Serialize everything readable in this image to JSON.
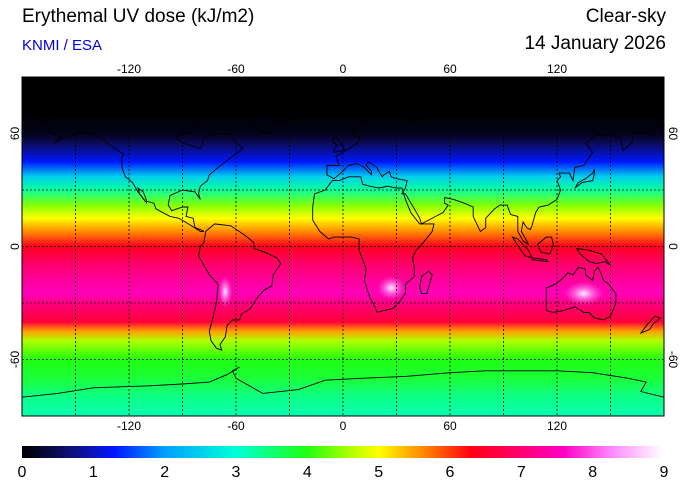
{
  "header": {
    "title": "Erythemal UV dose (kJ/m2)",
    "credit": "KNMI / ESA",
    "condition": "Clear-sky",
    "date": "14 January 2026"
  },
  "map": {
    "projection": "equirectangular",
    "lon_range": [
      -180,
      180
    ],
    "lat_range": [
      -90,
      90
    ],
    "lon_ticks": [
      {
        "value": -120,
        "label": "-120"
      },
      {
        "value": -60,
        "label": "-60"
      },
      {
        "value": 0,
        "label": "0"
      },
      {
        "value": 60,
        "label": "60"
      },
      {
        "value": 120,
        "label": "120"
      }
    ],
    "lat_ticks": [
      {
        "value": 60,
        "label": "60"
      },
      {
        "value": 0,
        "label": "0"
      },
      {
        "value": -60,
        "label": "-60"
      }
    ],
    "gridlines": "dotted",
    "coastlines": "black",
    "field_profile": [
      {
        "lat": 90,
        "dose": 0
      },
      {
        "lat": 72,
        "dose": 0
      },
      {
        "lat": 60,
        "dose": 0.15
      },
      {
        "lat": 55,
        "dose": 0.5
      },
      {
        "lat": 45,
        "dose": 1.3
      },
      {
        "lat": 37,
        "dose": 2.5
      },
      {
        "lat": 30,
        "dose": 3.3
      },
      {
        "lat": 22,
        "dose": 4.4
      },
      {
        "lat": 15,
        "dose": 5.0
      },
      {
        "lat": 8,
        "dose": 5.6
      },
      {
        "lat": 0,
        "dose": 6.4
      },
      {
        "lat": -10,
        "dose": 7.0
      },
      {
        "lat": -18,
        "dose": 7.3
      },
      {
        "lat": -25,
        "dose": 7.5
      },
      {
        "lat": -32,
        "dose": 7.0
      },
      {
        "lat": -40,
        "dose": 6.6
      },
      {
        "lat": -45,
        "dose": 5.5
      },
      {
        "lat": -50,
        "dose": 4.6
      },
      {
        "lat": -60,
        "dose": 4.0
      },
      {
        "lat": -70,
        "dose": 3.8
      },
      {
        "lat": -80,
        "dose": 3.4
      },
      {
        "lat": -90,
        "dose": 3.2
      }
    ]
  },
  "colorbar": {
    "min": 0,
    "max": 9,
    "tick_labels": [
      "0",
      "1",
      "2",
      "3",
      "4",
      "5",
      "6",
      "7",
      "8",
      "9"
    ],
    "stops": [
      {
        "value": 0,
        "color": "#000000"
      },
      {
        "value": 0.7,
        "color": "#10107a"
      },
      {
        "value": 1.3,
        "color": "#0018ff"
      },
      {
        "value": 2.0,
        "color": "#00a0ff"
      },
      {
        "value": 3.0,
        "color": "#00ffd8"
      },
      {
        "value": 4.0,
        "color": "#20ff10"
      },
      {
        "value": 4.6,
        "color": "#b0ff00"
      },
      {
        "value": 5.0,
        "color": "#ffff00"
      },
      {
        "value": 5.6,
        "color": "#ff8c00"
      },
      {
        "value": 6.3,
        "color": "#ff0010"
      },
      {
        "value": 7.0,
        "color": "#ff0070"
      },
      {
        "value": 7.6,
        "color": "#ff00c8"
      },
      {
        "value": 8.3,
        "color": "#ff90ff"
      },
      {
        "value": 9.0,
        "color": "#ffffff"
      }
    ]
  }
}
